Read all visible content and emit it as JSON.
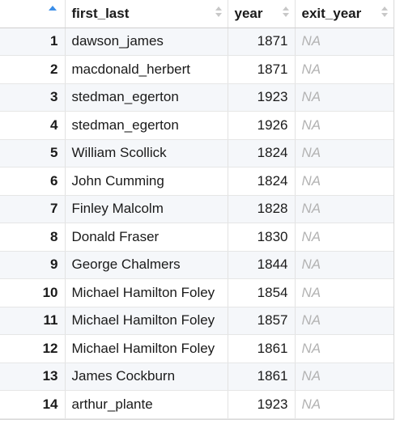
{
  "table": {
    "sort_color": "#3b8ee8",
    "columns": [
      "first_last",
      "year",
      "exit_year"
    ],
    "rows": [
      {
        "idx": "1",
        "first_last": "dawson_james",
        "year": "1871",
        "exit_year": "NA"
      },
      {
        "idx": "2",
        "first_last": "macdonald_herbert",
        "year": "1871",
        "exit_year": "NA"
      },
      {
        "idx": "3",
        "first_last": "stedman_egerton",
        "year": "1923",
        "exit_year": "NA"
      },
      {
        "idx": "4",
        "first_last": "stedman_egerton",
        "year": "1926",
        "exit_year": "NA"
      },
      {
        "idx": "5",
        "first_last": "William Scollick",
        "year": "1824",
        "exit_year": "NA"
      },
      {
        "idx": "6",
        "first_last": "John Cumming",
        "year": "1824",
        "exit_year": "NA"
      },
      {
        "idx": "7",
        "first_last": "Finley Malcolm",
        "year": "1828",
        "exit_year": "NA"
      },
      {
        "idx": "8",
        "first_last": "Donald Fraser",
        "year": "1830",
        "exit_year": "NA"
      },
      {
        "idx": "9",
        "first_last": "George Chalmers",
        "year": "1844",
        "exit_year": "NA"
      },
      {
        "idx": "10",
        "first_last": "Michael Hamilton Foley",
        "year": "1854",
        "exit_year": "NA"
      },
      {
        "idx": "11",
        "first_last": "Michael Hamilton Foley",
        "year": "1857",
        "exit_year": "NA"
      },
      {
        "idx": "12",
        "first_last": "Michael Hamilton Foley",
        "year": "1861",
        "exit_year": "NA"
      },
      {
        "idx": "13",
        "first_last": "James Cockburn",
        "year": "1861",
        "exit_year": "NA"
      },
      {
        "idx": "14",
        "first_last": "arthur_plante",
        "year": "1923",
        "exit_year": "NA"
      }
    ]
  }
}
